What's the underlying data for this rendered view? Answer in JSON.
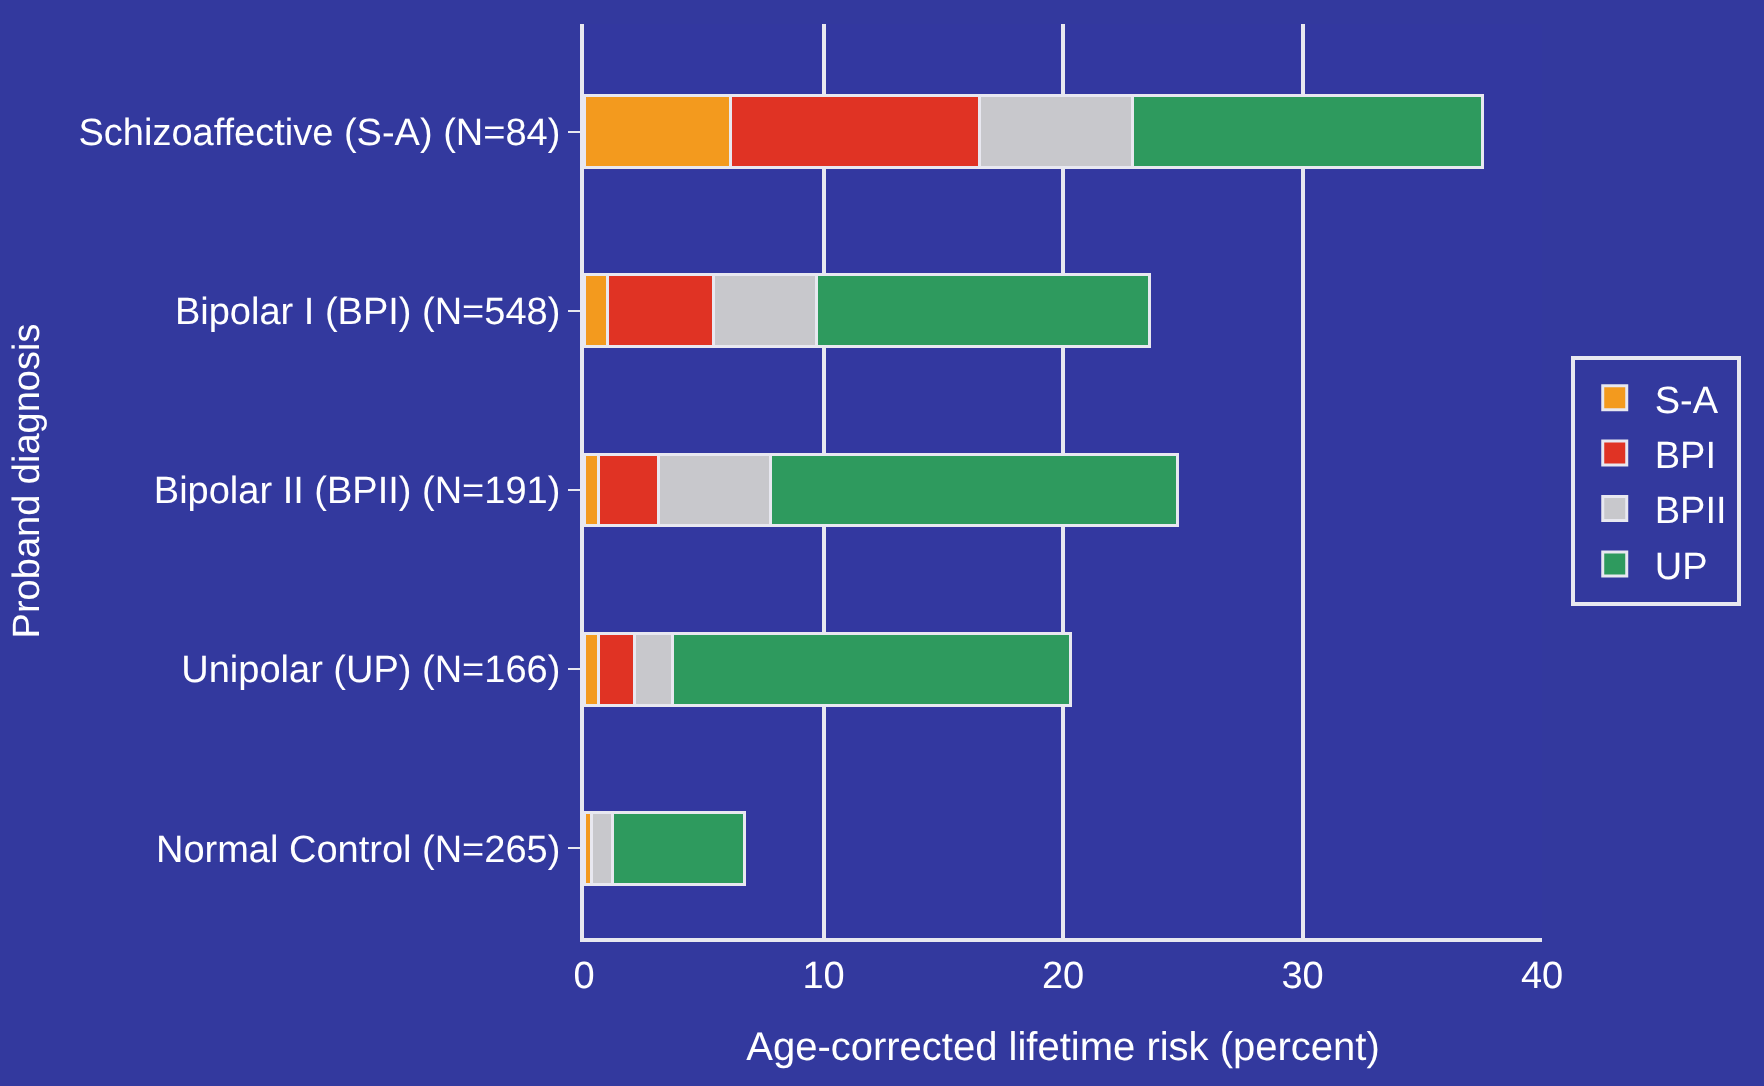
{
  "chart_data": {
    "type": "bar",
    "orientation": "horizontal",
    "stacked": true,
    "xlabel": "Age-corrected lifetime risk (percent)",
    "ylabel": "Proband diagnosis",
    "categories": [
      "Schizoaffective (S-A) (N=84)",
      "Bipolar I (BPI) (N=548)",
      "Bipolar II (BPII) (N=191)",
      "Unipolar (UP) (N=166)",
      "Normal Control (N=265)"
    ],
    "series": [
      {
        "name": "S-A",
        "color": "#f39a1e",
        "values": [
          6.1,
          1.0,
          0.6,
          0.6,
          0.3
        ]
      },
      {
        "name": "BPI",
        "color": "#e03324",
        "values": [
          10.4,
          4.4,
          2.5,
          1.5,
          0.0
        ]
      },
      {
        "name": "BPII",
        "color": "#c8c8cc",
        "values": [
          6.4,
          4.3,
          4.7,
          1.6,
          0.9
        ]
      },
      {
        "name": "UP",
        "color": "#2e9a5e",
        "values": [
          14.6,
          13.9,
          17.0,
          16.6,
          5.5
        ]
      }
    ],
    "xlim": [
      0,
      40
    ],
    "xticks": [
      0,
      10,
      20,
      30,
      40
    ],
    "grid": "x",
    "legend": "right"
  }
}
